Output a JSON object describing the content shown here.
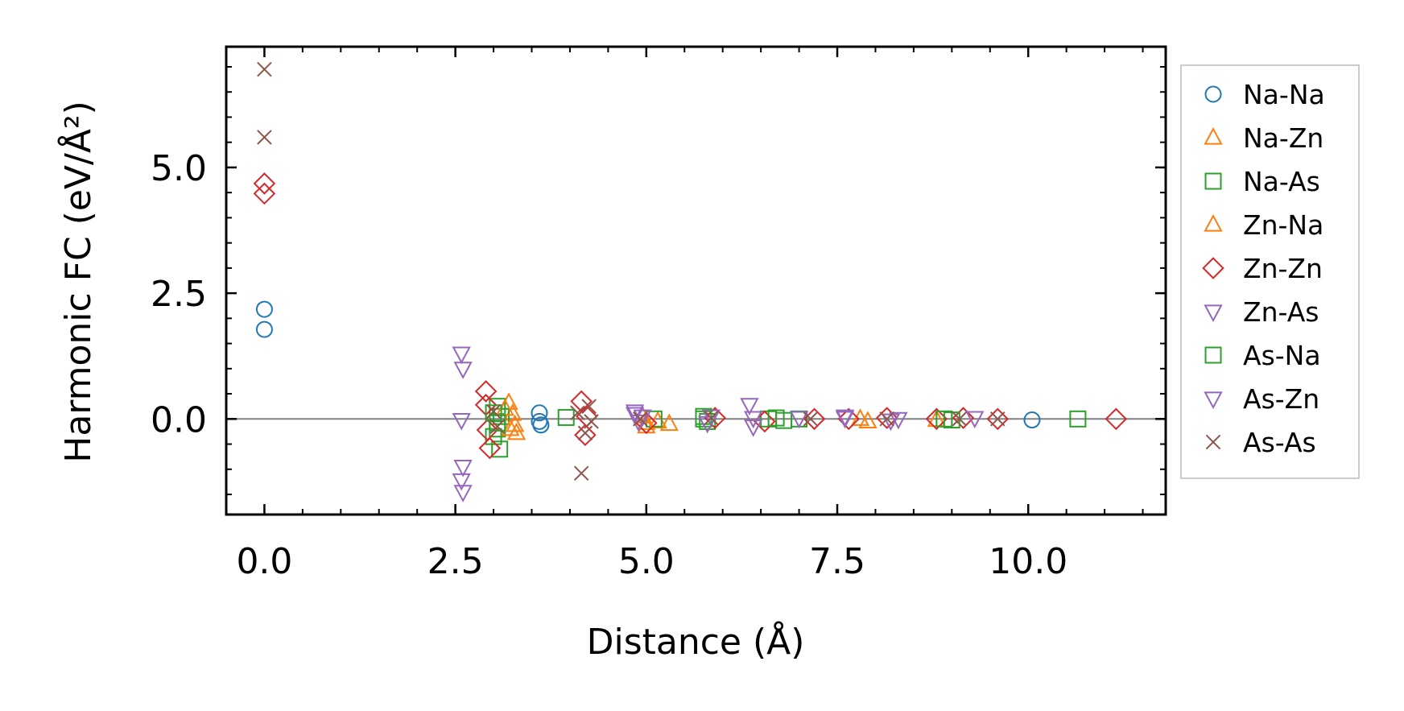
{
  "chart_data": {
    "type": "scatter",
    "title": "",
    "xlabel": "Distance (Å)",
    "ylabel": "Harmonic FC (eV/Å²)",
    "xlim": [
      -0.5,
      11.8
    ],
    "ylim": [
      -1.9,
      7.4
    ],
    "xticks": [
      0.0,
      2.5,
      5.0,
      7.5,
      10.0
    ],
    "xtick_labels": [
      "0.0",
      "2.5",
      "5.0",
      "7.5",
      "10.0"
    ],
    "yticks": [
      0.0,
      2.5,
      5.0
    ],
    "ytick_labels": [
      "0.0",
      "2.5",
      "5.0"
    ],
    "zero_line": 0,
    "legend_position": "outside-right",
    "series": [
      {
        "name": "Na-Na",
        "marker": "circle",
        "color": "#1f77b4",
        "points": [
          [
            0,
            2.18
          ],
          [
            0,
            1.78
          ],
          [
            3.6,
            0.12
          ],
          [
            3.6,
            -0.05
          ],
          [
            3.62,
            -0.12
          ],
          [
            10.05,
            -0.02
          ]
        ]
      },
      {
        "name": "Na-Zn",
        "marker": "triangle-up",
        "color": "#ff7f0e",
        "points": [
          [
            3.2,
            0.32
          ],
          [
            3.25,
            0.1
          ],
          [
            3.28,
            -0.12
          ],
          [
            3.3,
            -0.28
          ],
          [
            5.0,
            -0.08
          ],
          [
            5.15,
            -0.05
          ],
          [
            5.3,
            -0.1
          ],
          [
            7.9,
            -0.05
          ],
          [
            8.8,
            -0.02
          ]
        ]
      },
      {
        "name": "Na-As",
        "marker": "square",
        "color": "#2ca02c",
        "points": [
          [
            3.05,
            0.25
          ],
          [
            3.1,
            0.05
          ],
          [
            3.05,
            -0.2
          ],
          [
            3.08,
            -0.6
          ],
          [
            3.0,
            -0.35
          ],
          [
            3.95,
            0.03
          ],
          [
            5.1,
            0.0
          ],
          [
            5.75,
            0.0
          ],
          [
            5.8,
            -0.05
          ],
          [
            6.6,
            0.0
          ],
          [
            6.8,
            -0.03
          ],
          [
            7.0,
            0.0
          ],
          [
            10.65,
            0.0
          ]
        ]
      },
      {
        "name": "Zn-Na",
        "marker": "triangle-up",
        "color": "#ff7f0e",
        "points": [
          [
            3.15,
            0.2
          ],
          [
            3.22,
            -0.2
          ],
          [
            4.95,
            0.05
          ],
          [
            5.0,
            -0.15
          ],
          [
            7.8,
            0.0
          ]
        ]
      },
      {
        "name": "Zn-Zn",
        "marker": "diamond",
        "color": "#d62728",
        "points": [
          [
            0,
            4.68
          ],
          [
            0,
            4.48
          ],
          [
            2.9,
            0.55
          ],
          [
            2.9,
            0.28
          ],
          [
            2.92,
            -0.22
          ],
          [
            2.95,
            -0.58
          ],
          [
            4.15,
            0.35
          ],
          [
            4.2,
            -0.32
          ],
          [
            4.22,
            0.05
          ],
          [
            5.0,
            -0.08
          ],
          [
            5.9,
            0.02
          ],
          [
            6.55,
            -0.05
          ],
          [
            7.2,
            0.0
          ],
          [
            7.65,
            0.0
          ],
          [
            8.15,
            0.02
          ],
          [
            8.8,
            0.0
          ],
          [
            9.15,
            0.02
          ],
          [
            9.6,
            0.0
          ],
          [
            11.15,
            0.0
          ]
        ]
      },
      {
        "name": "Zn-As",
        "marker": "triangle-down",
        "color": "#9467bd",
        "points": [
          [
            2.58,
            1.3
          ],
          [
            2.6,
            1.0
          ],
          [
            2.58,
            -0.02
          ],
          [
            2.6,
            -0.95
          ],
          [
            2.58,
            -1.22
          ],
          [
            2.6,
            -1.45
          ],
          [
            4.85,
            0.1
          ],
          [
            4.95,
            0.05
          ],
          [
            5.85,
            0.05
          ],
          [
            6.35,
            0.28
          ],
          [
            6.4,
            -0.15
          ],
          [
            7.0,
            0.02
          ],
          [
            7.6,
            0.02
          ],
          [
            8.3,
            0.0
          ],
          [
            9.3,
            0.02
          ]
        ]
      },
      {
        "name": "As-Na",
        "marker": "square",
        "color": "#2ca02c",
        "points": [
          [
            3.0,
            0.12
          ],
          [
            3.05,
            -0.08
          ],
          [
            5.75,
            0.05
          ],
          [
            6.7,
            0.02
          ],
          [
            8.9,
            0.0
          ],
          [
            9.0,
            -0.02
          ]
        ]
      },
      {
        "name": "As-Zn",
        "marker": "triangle-down",
        "color": "#9467bd",
        "points": [
          [
            4.85,
            0.15
          ],
          [
            4.9,
            -0.05
          ],
          [
            5.8,
            -0.08
          ],
          [
            6.4,
            0.02
          ],
          [
            7.6,
            0.05
          ],
          [
            8.2,
            -0.03
          ]
        ]
      },
      {
        "name": "As-As",
        "marker": "x",
        "color": "#8c564b",
        "points": [
          [
            0,
            6.95
          ],
          [
            0,
            5.6
          ],
          [
            3.0,
            0.15
          ],
          [
            3.05,
            -0.15
          ],
          [
            4.1,
            0.12
          ],
          [
            4.15,
            -1.08
          ],
          [
            4.2,
            -0.28
          ],
          [
            4.25,
            0.25
          ],
          [
            4.28,
            -0.05
          ],
          [
            4.92,
            0.0
          ],
          [
            5.85,
            0.02
          ],
          [
            7.15,
            0.0
          ],
          [
            8.15,
            0.0
          ],
          [
            9.1,
            0.0
          ],
          [
            9.6,
            0.0
          ]
        ]
      }
    ]
  }
}
